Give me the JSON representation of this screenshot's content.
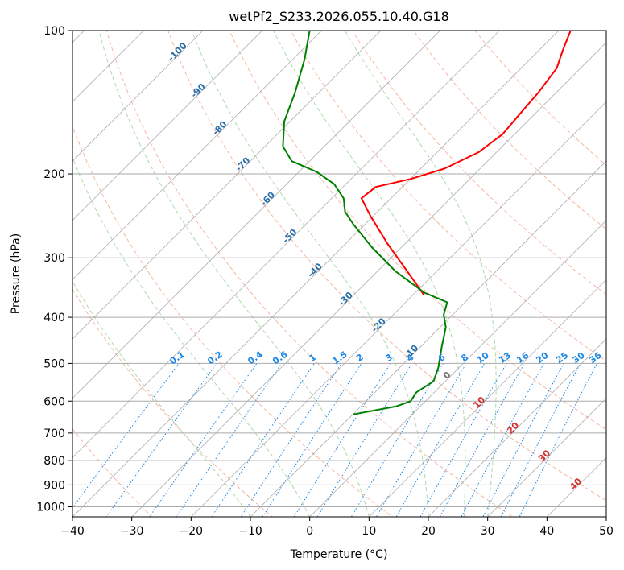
{
  "chart_data": {
    "type": "line",
    "subtype": "skew-t log-p diagram",
    "title": "wetPf2_S233.2026.055.10.40.G18",
    "xlabel": "Temperature (°C)",
    "ylabel": "Pressure (hPa)",
    "xlim": [
      -40,
      50
    ],
    "ylim": [
      1050,
      100
    ],
    "y_scale": "log",
    "x_ticks": [
      -40,
      -30,
      -20,
      -10,
      0,
      10,
      20,
      30,
      40,
      50
    ],
    "x_tick_labels": [
      "−40",
      "−30",
      "−20",
      "−10",
      "0",
      "10",
      "20",
      "30",
      "40",
      "50"
    ],
    "y_ticks": [
      100,
      200,
      300,
      400,
      500,
      600,
      700,
      800,
      900,
      1000
    ],
    "y_tick_labels": [
      "100",
      "200",
      "300",
      "400",
      "500",
      "600",
      "700",
      "800",
      "900",
      "1000"
    ],
    "grid": true,
    "series": [
      {
        "color": "#ff0000",
        "points": [
          {
            "p": 360,
            "t": -18
          },
          {
            "p": 320,
            "t": -25
          },
          {
            "p": 280,
            "t": -33
          },
          {
            "p": 245,
            "t": -40.5
          },
          {
            "p": 225,
            "t": -45
          },
          {
            "p": 213,
            "t": -44.5
          },
          {
            "p": 205,
            "t": -40
          },
          {
            "p": 195,
            "t": -36
          },
          {
            "p": 180,
            "t": -33
          },
          {
            "p": 165,
            "t": -32
          },
          {
            "p": 150,
            "t": -32.5
          },
          {
            "p": 135,
            "t": -33
          },
          {
            "p": 120,
            "t": -34
          },
          {
            "p": 110,
            "t": -36
          },
          {
            "p": 100,
            "t": -38
          }
        ]
      },
      {
        "color": "#008000",
        "points": [
          {
            "p": 640,
            "t": -10
          },
          {
            "p": 615,
            "t": -4
          },
          {
            "p": 600,
            "t": -2.5
          },
          {
            "p": 575,
            "t": -3
          },
          {
            "p": 545,
            "t": -2
          },
          {
            "p": 510,
            "t": -3.5
          },
          {
            "p": 460,
            "t": -6.5
          },
          {
            "p": 420,
            "t": -9
          },
          {
            "p": 395,
            "t": -11.5
          },
          {
            "p": 372,
            "t": -13
          },
          {
            "p": 355,
            "t": -18.5
          },
          {
            "p": 320,
            "t": -27
          },
          {
            "p": 285,
            "t": -35
          },
          {
            "p": 255,
            "t": -42
          },
          {
            "p": 240,
            "t": -45.5
          },
          {
            "p": 225,
            "t": -48
          },
          {
            "p": 210,
            "t": -52
          },
          {
            "p": 198,
            "t": -57
          },
          {
            "p": 188,
            "t": -63
          },
          {
            "p": 175,
            "t": -67
          },
          {
            "p": 155,
            "t": -71
          },
          {
            "p": 135,
            "t": -74
          },
          {
            "p": 115,
            "t": -78
          },
          {
            "p": 100,
            "t": -82
          }
        ]
      }
    ],
    "overlays": {
      "dry_adiabats_theta_C": [
        -30,
        -10,
        10,
        30,
        50,
        70,
        90,
        110,
        130,
        150
      ],
      "moist_adiabats_start_C": [
        -10,
        0,
        10,
        20,
        26,
        30
      ],
      "mixing_ratio_lines_gkg": [
        0.1,
        0.2,
        0.4,
        0.6,
        1,
        1.5,
        2,
        3,
        4,
        6,
        8,
        10,
        13,
        16,
        20,
        25,
        30,
        36
      ],
      "mixing_ratio_labels": [
        "0.1",
        "0.2",
        "0.4",
        "0.6",
        "1",
        "1.5",
        "2",
        "3",
        "4",
        "6",
        "8",
        "10",
        "13",
        "16",
        "20",
        "25",
        "30",
        "36"
      ],
      "mixing_ratio_label_pressure_hPa": 500,
      "freezing_level_labels": [
        {
          "text": "-100",
          "p": 112
        },
        {
          "text": "-90",
          "p": 135
        },
        {
          "text": "-80",
          "p": 162
        },
        {
          "text": "-70",
          "p": 193
        },
        {
          "text": "-60",
          "p": 228
        },
        {
          "text": "-50",
          "p": 273
        },
        {
          "text": "-40",
          "p": 322
        },
        {
          "text": "-30",
          "p": 370
        },
        {
          "text": "-20",
          "p": 420
        },
        {
          "text": "-10",
          "p": 478
        },
        {
          "text": "0",
          "p": 535
        }
      ],
      "temperature_labels": [
        {
          "text": "10",
          "p": 610
        },
        {
          "text": "20",
          "p": 690
        },
        {
          "text": "30",
          "p": 790
        },
        {
          "text": "40",
          "p": 905
        }
      ]
    }
  }
}
